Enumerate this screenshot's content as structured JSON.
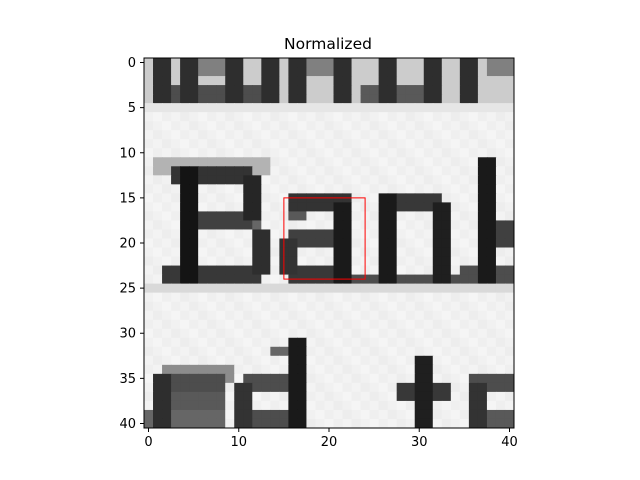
{
  "chart_data": {
    "type": "heatmap",
    "title": "Normalized",
    "xlabel": "",
    "ylabel": "",
    "colormap": "gray",
    "image_shape": [
      41,
      41
    ],
    "xlim": [
      -0.5,
      40.5
    ],
    "ylim": [
      40.5,
      -0.5
    ],
    "x_ticks": [
      0,
      10,
      20,
      30,
      40
    ],
    "y_ticks": [
      0,
      5,
      10,
      15,
      20,
      25,
      30,
      35,
      40
    ],
    "x_tick_labels": [
      "0",
      "10",
      "20",
      "30",
      "40"
    ],
    "y_tick_labels": [
      "0",
      "5",
      "10",
      "15",
      "20",
      "25",
      "30",
      "35",
      "40"
    ],
    "image_content": "grayscale crop of printed serif text: partial lower edges of letters on top line, the word 'Ban' (with partial 'k') across the middle, and partial letters 'ed t' at the bottom",
    "highlight_box": {
      "color": "#ff0000",
      "x": [
        15,
        24
      ],
      "y": [
        15,
        24
      ]
    }
  }
}
